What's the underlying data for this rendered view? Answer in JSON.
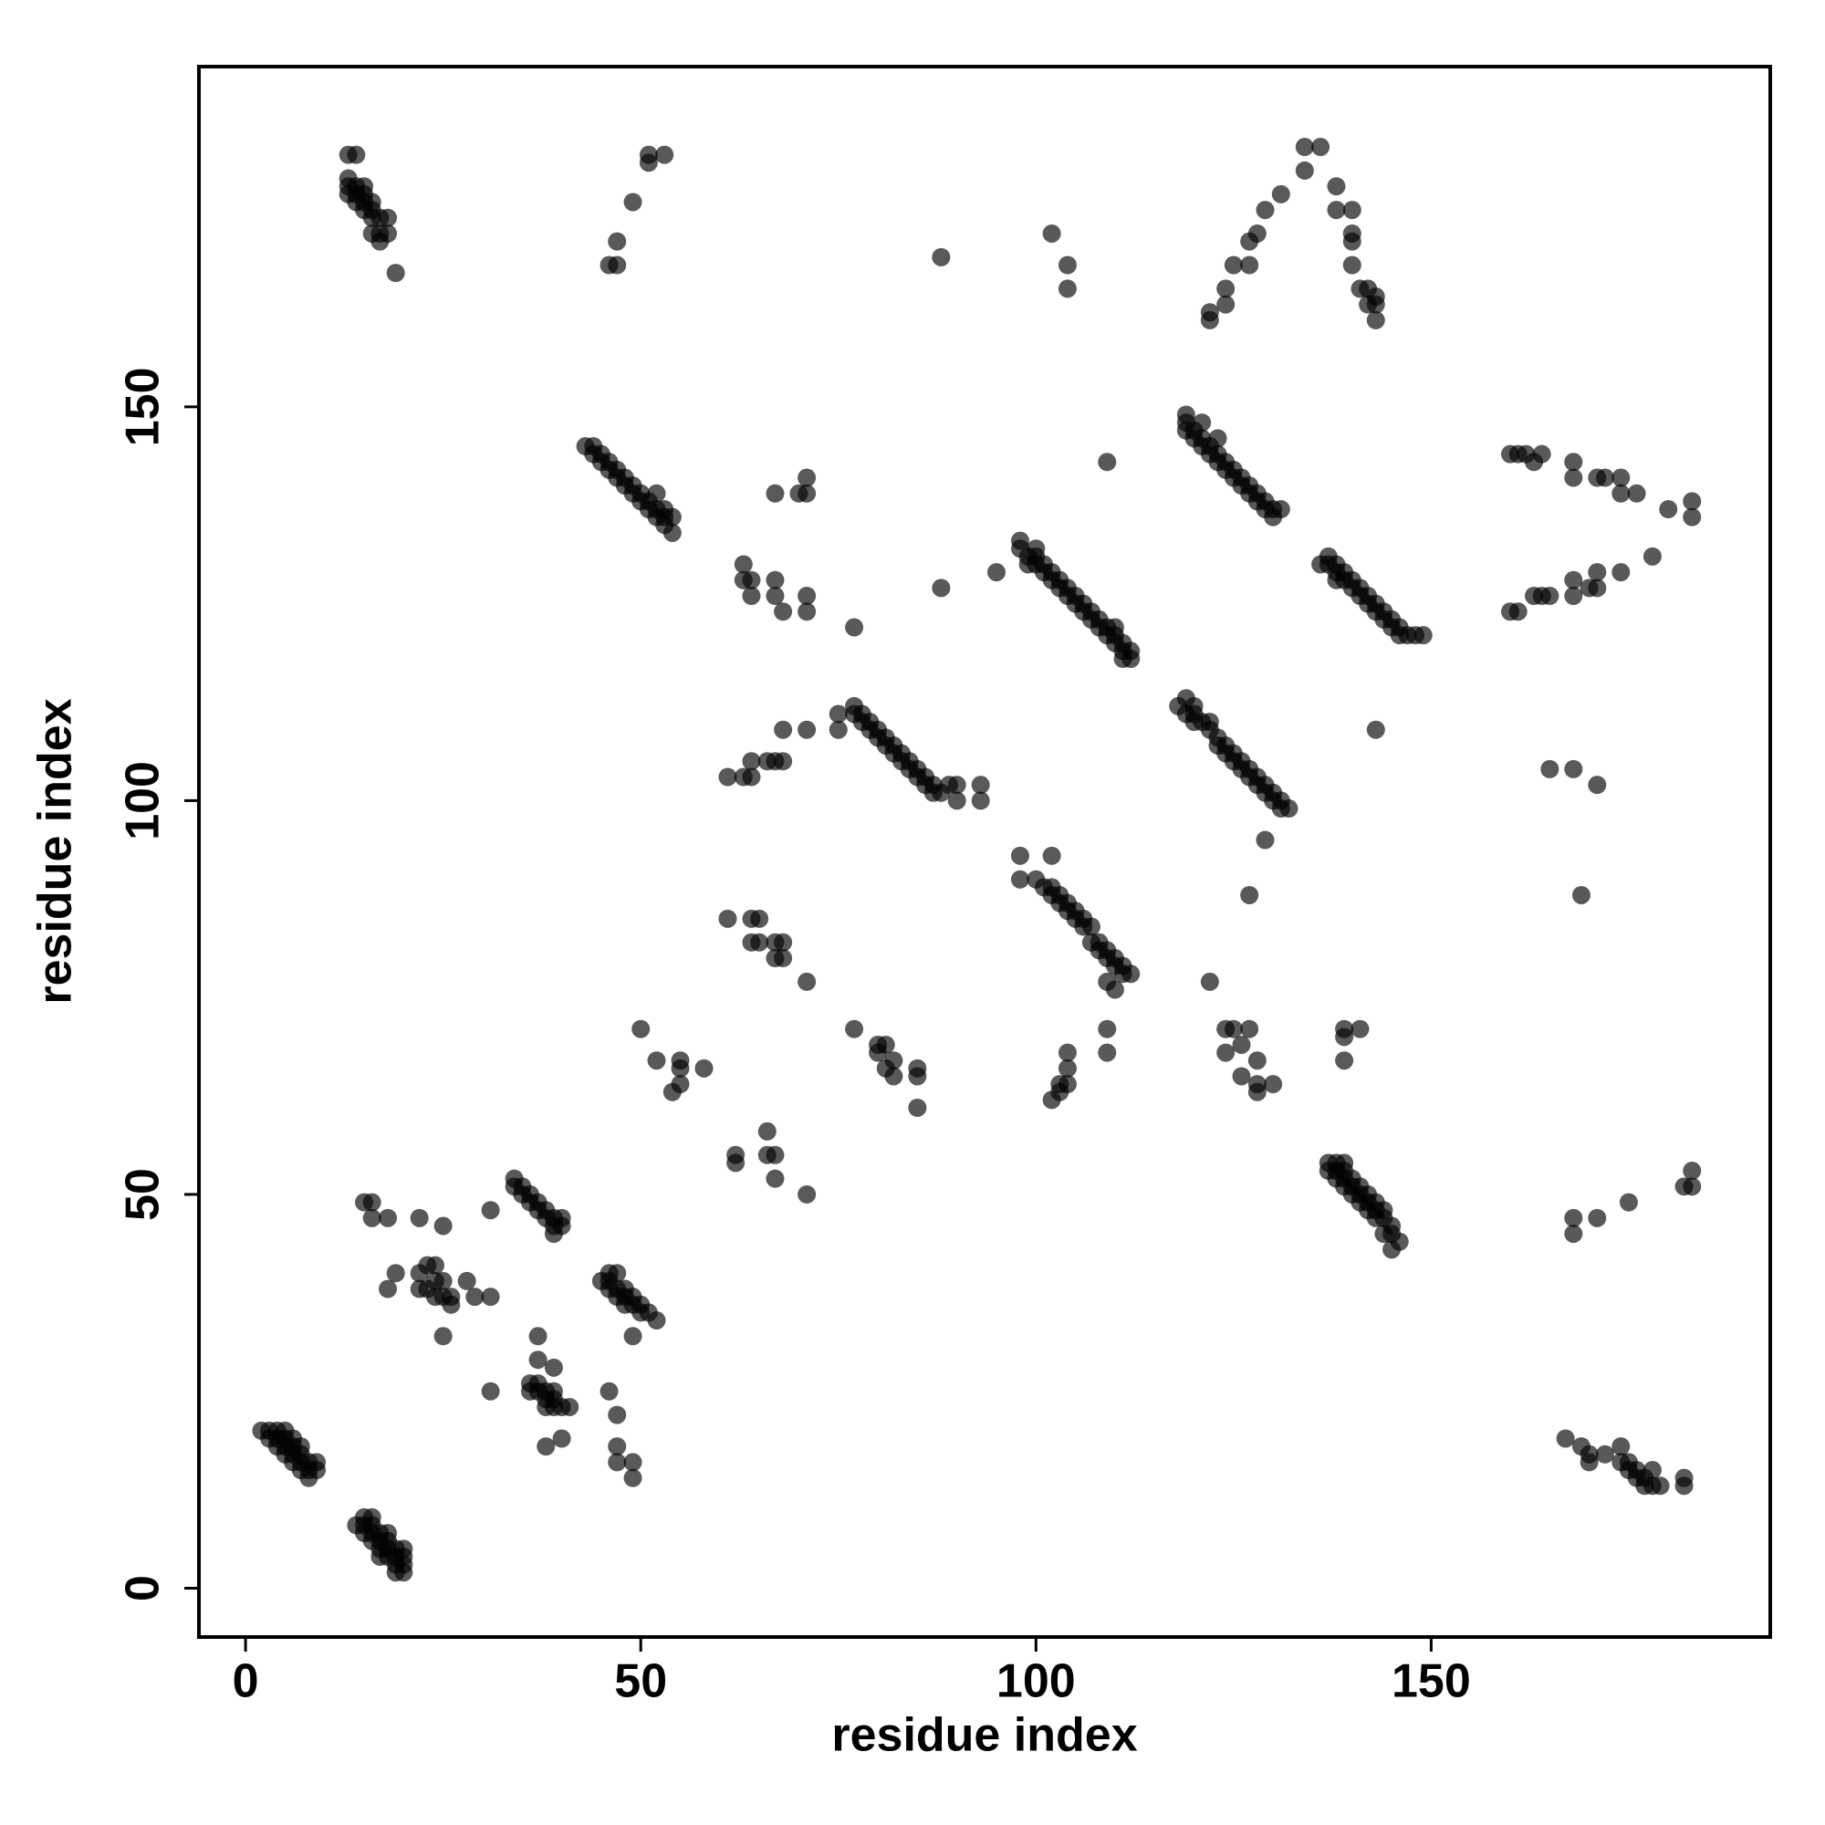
{
  "chart_data": {
    "type": "scatter",
    "xlabel": "residue index",
    "ylabel": "residue index",
    "xlim": [
      -5.9,
      192.9
    ],
    "ylim": [
      -6.2,
      193.2
    ],
    "xticks": [
      0,
      50,
      100,
      150
    ],
    "yticks": [
      0,
      50,
      100,
      150
    ],
    "color": "#000000",
    "alpha": 0.65,
    "x": [
      2,
      3,
      4,
      5,
      3,
      4,
      5,
      6,
      4,
      5,
      6,
      7,
      5,
      6,
      7,
      6,
      7,
      8,
      9,
      7,
      8,
      9,
      8,
      14,
      15,
      16,
      15,
      16,
      15,
      16,
      17,
      18,
      16,
      17,
      18,
      17,
      18,
      19,
      17,
      18,
      19,
      19,
      20,
      19,
      20,
      20,
      20,
      13,
      14,
      13,
      13,
      13,
      14,
      14,
      15,
      15,
      14,
      15,
      16,
      16,
      15,
      16,
      17,
      18,
      16,
      17,
      18,
      17,
      19,
      46,
      47,
      47,
      49,
      51,
      51,
      53,
      88,
      102,
      104,
      104,
      122,
      122,
      124,
      124,
      125,
      127,
      127,
      128,
      129,
      131,
      134,
      134,
      136,
      138,
      138,
      140,
      140,
      140,
      140,
      141,
      142,
      142,
      143,
      143,
      143,
      43,
      44,
      44,
      45,
      45,
      46,
      46,
      47,
      47,
      48,
      48,
      49,
      49,
      50,
      50,
      51,
      51,
      52,
      52,
      53,
      53,
      54,
      54,
      52,
      53,
      63,
      63,
      64,
      64,
      67,
      67,
      68,
      71,
      71,
      67,
      70,
      71,
      71,
      77,
      88,
      95,
      109,
      98,
      98,
      99,
      99,
      100,
      100,
      100,
      101,
      101,
      102,
      102,
      103,
      103,
      104,
      104,
      105,
      105,
      106,
      106,
      107,
      107,
      108,
      108,
      109,
      109,
      110,
      110,
      111,
      111,
      112,
      112,
      111,
      110,
      119,
      119,
      119,
      120,
      120,
      121,
      121,
      122,
      122,
      123,
      123,
      124,
      124,
      125,
      125,
      126,
      126,
      127,
      127,
      128,
      128,
      129,
      129,
      130,
      130,
      131,
      121,
      123,
      136,
      137,
      137,
      138,
      138,
      138,
      139,
      139,
      140,
      140,
      141,
      141,
      142,
      142,
      143,
      143,
      144,
      144,
      145,
      145,
      146,
      146,
      147,
      148,
      149,
      160,
      161,
      162,
      163,
      164,
      168,
      168,
      171,
      172,
      174,
      174,
      176,
      180,
      183,
      183,
      178,
      174,
      171,
      171,
      170,
      168,
      168,
      164,
      165,
      163,
      160,
      161,
      143,
      75,
      75,
      77,
      77,
      78,
      78,
      79,
      79,
      80,
      80,
      81,
      81,
      82,
      82,
      83,
      83,
      84,
      84,
      85,
      85,
      86,
      86,
      87,
      87,
      88,
      89,
      90,
      90,
      93,
      93,
      61,
      63,
      64,
      64,
      66,
      67,
      68,
      68,
      71,
      118,
      119,
      119,
      120,
      120,
      120,
      121,
      122,
      122,
      123,
      123,
      124,
      124,
      125,
      125,
      126,
      126,
      127,
      127,
      128,
      128,
      129,
      129,
      130,
      130,
      131,
      131,
      132,
      129,
      127,
      165,
      168,
      171,
      169,
      98,
      98,
      102,
      100,
      101,
      102,
      102,
      103,
      103,
      104,
      104,
      105,
      105,
      106,
      106,
      107,
      107,
      108,
      108,
      109,
      109,
      110,
      110,
      111,
      111,
      112,
      109,
      110,
      109,
      109,
      104,
      104,
      103,
      103,
      104,
      102,
      61,
      64,
      65,
      64,
      65,
      67,
      68,
      67,
      68,
      71,
      77,
      80,
      80,
      81,
      81,
      82,
      82,
      85,
      85,
      85,
      50,
      52,
      54,
      55,
      55,
      55,
      58,
      62,
      62,
      66,
      66,
      67,
      67,
      71,
      122,
      124,
      125,
      124,
      126,
      127,
      126,
      128,
      128,
      128,
      130,
      139,
      139,
      141,
      139,
      137,
      138,
      139,
      137,
      138,
      139,
      138,
      139,
      140,
      139,
      140,
      141,
      140,
      141,
      142,
      141,
      142,
      143,
      142,
      143,
      144,
      143,
      144,
      145,
      145,
      146,
      145,
      144,
      168,
      168,
      171,
      175,
      182,
      183,
      183,
      167,
      169,
      170,
      170,
      172,
      174,
      174,
      175,
      175,
      176,
      176,
      177,
      177,
      178,
      178,
      179,
      182,
      182,
      15,
      16,
      16,
      18,
      22,
      25,
      31,
      19,
      18,
      22,
      23,
      24,
      22,
      23,
      24,
      24,
      25,
      25,
      26,
      26,
      25,
      28,
      29,
      31,
      34,
      34,
      35,
      35,
      36,
      36,
      37,
      37,
      38,
      38,
      39,
      39,
      40,
      40,
      39,
      45,
      46,
      46,
      47,
      46,
      47,
      48,
      47,
      48,
      49,
      48,
      49,
      50,
      50,
      51,
      52,
      49,
      37,
      37,
      39,
      36,
      37,
      36,
      37,
      38,
      39,
      38,
      39,
      38,
      39,
      40,
      41,
      38,
      40,
      31,
      46,
      47,
      47,
      47,
      49,
      49
    ],
    "values": [
      20,
      20,
      20,
      20,
      19,
      19,
      19,
      19,
      18,
      18,
      18,
      18,
      17,
      17,
      17,
      16,
      16,
      16,
      16,
      15,
      15,
      15,
      14,
      8,
      9,
      9,
      8,
      8,
      7,
      7,
      7,
      7,
      6,
      6,
      6,
      5,
      5,
      5,
      4,
      4,
      4,
      3,
      3,
      2,
      2,
      4,
      5,
      182,
      182,
      179,
      178,
      177,
      178,
      177,
      178,
      177,
      176,
      176,
      176,
      175,
      175,
      174,
      174,
      174,
      172,
      172,
      172,
      171,
      167,
      168,
      168,
      171,
      176,
      181,
      182,
      182,
      169,
      172,
      168,
      165,
      161,
      162,
      163,
      165,
      168,
      168,
      171,
      172,
      175,
      177,
      180,
      183,
      183,
      178,
      175,
      175,
      172,
      171,
      168,
      165,
      165,
      163,
      164,
      163,
      161,
      145,
      145,
      144,
      144,
      143,
      143,
      142,
      142,
      141,
      141,
      140,
      140,
      139,
      139,
      138,
      138,
      137,
      137,
      136,
      136,
      135,
      136,
      134,
      139,
      137,
      130,
      128,
      128,
      126,
      128,
      126,
      124,
      126,
      124,
      139,
      139,
      141,
      139,
      122,
      127,
      129,
      143,
      133,
      132,
      131,
      130,
      132,
      131,
      130,
      130,
      129,
      129,
      128,
      128,
      127,
      127,
      126,
      126,
      125,
      125,
      124,
      124,
      123,
      123,
      122,
      122,
      121,
      121,
      120,
      120,
      119,
      119,
      118,
      118,
      122,
      149,
      148,
      147,
      147,
      146,
      146,
      145,
      145,
      144,
      144,
      143,
      143,
      142,
      142,
      141,
      141,
      140,
      140,
      139,
      139,
      138,
      138,
      137,
      137,
      136,
      137,
      148,
      146,
      130,
      131,
      130,
      130,
      129,
      128,
      129,
      128,
      128,
      127,
      127,
      126,
      126,
      125,
      125,
      124,
      124,
      123,
      123,
      122,
      122,
      121,
      121,
      121,
      121,
      144,
      144,
      144,
      143,
      144,
      143,
      141,
      141,
      141,
      141,
      139,
      139,
      137,
      138,
      136,
      131,
      129,
      129,
      127,
      127,
      128,
      126,
      126,
      126,
      126,
      124,
      124,
      109,
      111,
      109,
      112,
      111,
      111,
      110,
      110,
      109,
      109,
      108,
      108,
      107,
      107,
      106,
      106,
      105,
      105,
      104,
      104,
      103,
      103,
      102,
      102,
      101,
      101,
      102,
      102,
      100,
      102,
      100,
      103,
      103,
      103,
      105,
      105,
      105,
      105,
      109,
      109,
      112,
      113,
      111,
      112,
      111,
      110,
      110,
      110,
      109,
      108,
      107,
      107,
      106,
      106,
      105,
      105,
      104,
      104,
      103,
      103,
      102,
      102,
      101,
      101,
      100,
      100,
      99,
      99,
      95,
      88,
      104,
      104,
      102,
      88,
      93,
      90,
      93,
      90,
      89,
      89,
      88,
      88,
      87,
      87,
      86,
      86,
      85,
      85,
      84,
      84,
      82,
      82,
      81,
      81,
      80,
      80,
      79,
      79,
      78,
      78,
      77,
      76,
      71,
      68,
      68,
      66,
      64,
      63,
      64,
      62,
      85,
      85,
      85,
      82,
      82,
      82,
      82,
      80,
      80,
      77,
      71,
      69,
      68,
      69,
      66,
      65,
      67,
      66,
      65,
      61,
      71,
      67,
      63,
      64,
      66,
      67,
      66,
      55,
      54,
      58,
      55,
      55,
      52,
      50,
      77,
      71,
      71,
      68,
      69,
      71,
      65,
      67,
      64,
      63,
      64,
      71,
      70,
      71,
      67,
      54,
      54,
      54,
      53,
      53,
      53,
      52,
      52,
      52,
      51,
      51,
      51,
      50,
      50,
      50,
      49,
      49,
      49,
      48,
      48,
      48,
      47,
      47,
      46,
      45,
      44,
      43,
      45,
      47,
      45,
      47,
      49,
      51,
      51,
      53,
      19,
      18,
      17,
      16,
      17,
      18,
      16,
      15,
      16,
      15,
      14,
      14,
      13,
      15,
      13,
      13,
      14,
      13,
      49,
      49,
      47,
      47,
      47,
      46,
      48,
      40,
      38,
      40,
      41,
      41,
      38,
      38,
      39,
      37,
      37,
      39,
      37,
      36,
      32,
      39,
      37,
      37,
      52,
      51,
      51,
      50,
      50,
      49,
      49,
      48,
      48,
      47,
      47,
      46,
      46,
      47,
      45,
      39,
      40,
      39,
      40,
      38,
      38,
      38,
      37,
      37,
      37,
      36,
      36,
      36,
      35,
      35,
      34,
      32,
      32,
      29,
      28,
      26,
      26,
      25,
      25,
      25,
      25,
      24,
      24,
      23,
      23,
      23,
      23,
      18,
      19,
      25,
      25,
      22,
      18,
      16,
      16,
      14
    ]
  }
}
